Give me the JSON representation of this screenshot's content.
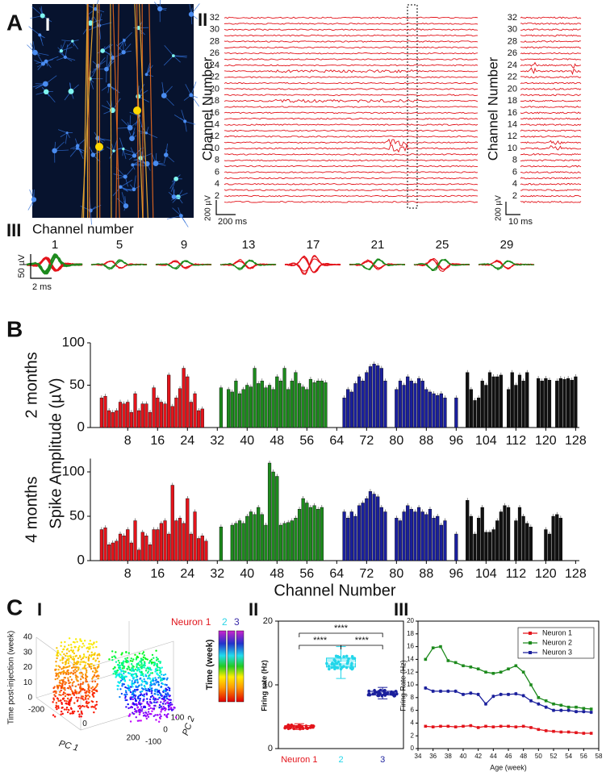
{
  "panel_labels": {
    "A": "A",
    "A1": "I",
    "A2": "II",
    "A3": "III",
    "B": "B",
    "C": "C",
    "C1": "I",
    "C2": "II",
    "C3": "III"
  },
  "raster": {
    "ylabel": "Channel Number",
    "yticks": [
      2,
      4,
      6,
      8,
      10,
      12,
      14,
      16,
      18,
      20,
      22,
      24,
      26,
      28,
      30,
      32
    ],
    "voltage_scale": "200 µV",
    "time_scale": "200 ms"
  },
  "raster_zoom": {
    "ylabel": "Channel Number",
    "yticks": [
      2,
      4,
      6,
      8,
      10,
      12,
      14,
      16,
      18,
      20,
      22,
      24,
      26,
      28,
      30,
      32
    ],
    "voltage_scale": "200 µV",
    "time_scale": "10 ms"
  },
  "waveforms": {
    "title": "Channel number",
    "channels": [
      1,
      5,
      9,
      13,
      17,
      21,
      25,
      29
    ],
    "voltage_scale": "50 µV",
    "time_scale": "2 ms"
  },
  "pca": {
    "zlabel": "Time post-injection (week)",
    "zticks": [
      0,
      10,
      20,
      30,
      40
    ],
    "xlabel": "PC 1",
    "xticks": [
      -200,
      0,
      200
    ],
    "ylabel": "PC 2",
    "yticks": [
      -100,
      0,
      100
    ],
    "colorbar_label": "Time (week)",
    "neurons": [
      "Neuron 1",
      "2",
      "3"
    ],
    "neuron_colors": [
      "#e0141b",
      "#2ad4e6",
      "#3a2aa8"
    ]
  },
  "chart_data": [
    {
      "type": "bar",
      "subtitle": "2 months",
      "ylabel": "Spike Amplitude (µV)",
      "ylim": [
        0,
        100
      ],
      "yticks": [
        0,
        50,
        100
      ],
      "xlim": [
        -2,
        129
      ],
      "xticks": [
        8,
        16,
        24,
        32,
        40,
        48,
        56,
        64,
        72,
        80,
        88,
        96,
        104,
        112,
        120,
        128
      ],
      "series": [
        {
          "color": "#e3141b",
          "x": [
            1,
            2,
            3,
            4,
            5,
            6,
            7,
            8,
            9,
            10,
            11,
            12,
            13,
            14,
            15,
            16,
            17,
            18,
            19,
            20,
            21,
            22,
            23,
            24,
            25,
            26,
            27,
            28,
            29,
            30,
            31,
            32
          ],
          "values": [
            35,
            37,
            20,
            18,
            20,
            30,
            28,
            30,
            18,
            40,
            20,
            28,
            28,
            18,
            47,
            35,
            30,
            28,
            62,
            25,
            35,
            46,
            70,
            60,
            30,
            40,
            20,
            22,
            null,
            null,
            null,
            null
          ]
        },
        {
          "color": "#1d8a1d",
          "x": [
            33,
            34,
            35,
            36,
            37,
            38,
            39,
            40,
            41,
            42,
            43,
            44,
            45,
            46,
            47,
            48,
            49,
            50,
            51,
            52,
            53,
            54,
            55,
            56,
            57,
            58,
            59,
            60,
            61,
            62,
            63,
            64
          ],
          "values": [
            47,
            null,
            45,
            42,
            55,
            40,
            45,
            50,
            48,
            70,
            52,
            55,
            47,
            50,
            45,
            60,
            55,
            70,
            45,
            55,
            65,
            52,
            48,
            45,
            57,
            53,
            55,
            55,
            53,
            null,
            null,
            null
          ]
        },
        {
          "color": "#1a1f9c",
          "x": [
            65,
            66,
            67,
            68,
            69,
            70,
            71,
            72,
            73,
            74,
            75,
            76,
            77,
            78,
            79,
            80,
            81,
            82,
            83,
            84,
            85,
            86,
            87,
            88,
            89,
            90,
            91,
            92,
            93,
            94,
            95,
            96
          ],
          "values": [
            null,
            35,
            45,
            42,
            52,
            60,
            55,
            65,
            72,
            75,
            73,
            70,
            55,
            null,
            null,
            45,
            55,
            50,
            60,
            55,
            52,
            58,
            55,
            45,
            42,
            40,
            38,
            40,
            35,
            null,
            null,
            35
          ]
        },
        {
          "color": "#111111",
          "x": [
            97,
            98,
            99,
            100,
            101,
            102,
            103,
            104,
            105,
            106,
            107,
            108,
            109,
            110,
            111,
            112,
            113,
            114,
            115,
            116,
            117,
            118,
            119,
            120,
            121,
            122,
            123,
            124,
            125,
            126,
            127,
            128
          ],
          "values": [
            null,
            null,
            65,
            45,
            32,
            35,
            55,
            50,
            65,
            60,
            60,
            62,
            null,
            45,
            65,
            50,
            62,
            55,
            65,
            null,
            null,
            58,
            55,
            58,
            56,
            null,
            55,
            58,
            57,
            58,
            56,
            60
          ]
        }
      ]
    },
    {
      "type": "bar",
      "subtitle": "4 months",
      "xlabel": "Channel Number",
      "ylim": [
        0,
        115
      ],
      "yticks": [
        0,
        50,
        100
      ],
      "xlim": [
        -2,
        129
      ],
      "xticks": [
        8,
        16,
        24,
        32,
        40,
        48,
        56,
        64,
        72,
        80,
        88,
        96,
        104,
        112,
        120,
        128
      ],
      "series": [
        {
          "color": "#e3141b",
          "x": [
            1,
            2,
            3,
            4,
            5,
            6,
            7,
            8,
            9,
            10,
            11,
            12,
            13,
            14,
            15,
            16,
            17,
            18,
            19,
            20,
            21,
            22,
            23,
            24,
            25,
            26,
            27,
            28,
            29,
            30,
            31,
            32
          ],
          "values": [
            35,
            37,
            18,
            20,
            22,
            30,
            28,
            35,
            20,
            45,
            12,
            32,
            28,
            18,
            35,
            35,
            42,
            45,
            30,
            85,
            45,
            48,
            42,
            70,
            30,
            55,
            25,
            28,
            22,
            null,
            null,
            null
          ]
        },
        {
          "color": "#1d8a1d",
          "x": [
            33,
            34,
            35,
            36,
            37,
            38,
            39,
            40,
            41,
            42,
            43,
            44,
            45,
            46,
            47,
            48,
            49,
            50,
            51,
            52,
            53,
            54,
            55,
            56,
            57,
            58,
            59,
            60,
            61,
            62,
            63,
            64
          ],
          "values": [
            38,
            null,
            null,
            40,
            42,
            45,
            42,
            50,
            55,
            52,
            60,
            52,
            40,
            110,
            100,
            95,
            40,
            42,
            43,
            45,
            48,
            58,
            70,
            65,
            60,
            62,
            58,
            60,
            null,
            null,
            null,
            null
          ]
        },
        {
          "color": "#1a1f9c",
          "x": [
            65,
            66,
            67,
            68,
            69,
            70,
            71,
            72,
            73,
            74,
            75,
            76,
            77,
            78,
            79,
            80,
            81,
            82,
            83,
            84,
            85,
            86,
            87,
            88,
            89,
            90,
            91,
            92,
            93,
            94,
            95,
            96
          ],
          "values": [
            null,
            55,
            48,
            55,
            50,
            62,
            65,
            70,
            78,
            75,
            72,
            60,
            55,
            null,
            null,
            48,
            45,
            55,
            62,
            58,
            55,
            60,
            55,
            52,
            58,
            48,
            50,
            40,
            45,
            null,
            null,
            30
          ]
        },
        {
          "color": "#111111",
          "x": [
            97,
            98,
            99,
            100,
            101,
            102,
            103,
            104,
            105,
            106,
            107,
            108,
            109,
            110,
            111,
            112,
            113,
            114,
            115,
            116,
            117,
            118,
            119,
            120,
            121,
            122,
            123,
            124,
            125,
            126,
            127,
            128
          ],
          "values": [
            null,
            null,
            68,
            50,
            30,
            48,
            60,
            32,
            32,
            35,
            45,
            55,
            62,
            60,
            null,
            45,
            60,
            50,
            42,
            38,
            null,
            null,
            null,
            35,
            30,
            50,
            52,
            48,
            null,
            null,
            null,
            null
          ]
        }
      ]
    },
    {
      "type": "box",
      "ylabel": "Firing rate (Hz)",
      "categories": [
        "Neuron 1",
        "2",
        "3"
      ],
      "colors": [
        "#e3141b",
        "#22d6ea",
        "#1a1f9c"
      ],
      "min": [
        3.0,
        11.0,
        7.8
      ],
      "q1": [
        3.2,
        12.8,
        8.4
      ],
      "median": [
        3.4,
        13.5,
        8.7
      ],
      "q3": [
        3.6,
        14.2,
        9.0
      ],
      "max": [
        3.9,
        16.0,
        9.6
      ],
      "ylim": [
        0,
        20
      ],
      "yticks": [
        0,
        10,
        20
      ],
      "annotations": [
        "****",
        "****",
        "****"
      ]
    },
    {
      "type": "line",
      "xlabel": "Age (week)",
      "ylabel": "Firing Rate (Hz)",
      "legend": "top-right",
      "xlim": [
        34,
        58
      ],
      "xticks": [
        34,
        36,
        38,
        40,
        42,
        44,
        46,
        48,
        50,
        52,
        54,
        56,
        58
      ],
      "ylim": [
        0,
        20
      ],
      "yticks": [
        0,
        2,
        4,
        6,
        8,
        10,
        12,
        14,
        16,
        18,
        20
      ],
      "x": [
        35,
        36,
        37,
        38,
        39,
        40,
        41,
        42,
        43,
        44,
        45,
        46,
        47,
        48,
        49,
        50,
        51,
        52,
        53,
        54,
        55,
        56,
        57
      ],
      "series": [
        {
          "name": "Neuron 1",
          "color": "#e3141b",
          "values": [
            3.5,
            3.4,
            3.5,
            3.5,
            3.4,
            3.5,
            3.6,
            3.3,
            3.5,
            3.4,
            3.5,
            3.5,
            3.4,
            3.5,
            3.3,
            3.0,
            2.8,
            2.7,
            2.6,
            2.6,
            2.5,
            2.4,
            2.4
          ]
        },
        {
          "name": "Neuron 2",
          "color": "#1d8a1d",
          "values": [
            14,
            15.8,
            16,
            13.8,
            13.5,
            13,
            12.8,
            12.5,
            12,
            11.8,
            12,
            12.5,
            13,
            12,
            10,
            8,
            7.5,
            7,
            6.8,
            6.5,
            6.5,
            6.3,
            6.2
          ]
        },
        {
          "name": "Neuron 3",
          "color": "#1a1f9c",
          "values": [
            9.5,
            9,
            9,
            9,
            9,
            8.5,
            8.7,
            8.5,
            7,
            8.2,
            8.5,
            8.5,
            8.6,
            8.3,
            7.5,
            7,
            6.5,
            6,
            6,
            6,
            5.8,
            5.8,
            5.7
          ]
        }
      ]
    }
  ]
}
